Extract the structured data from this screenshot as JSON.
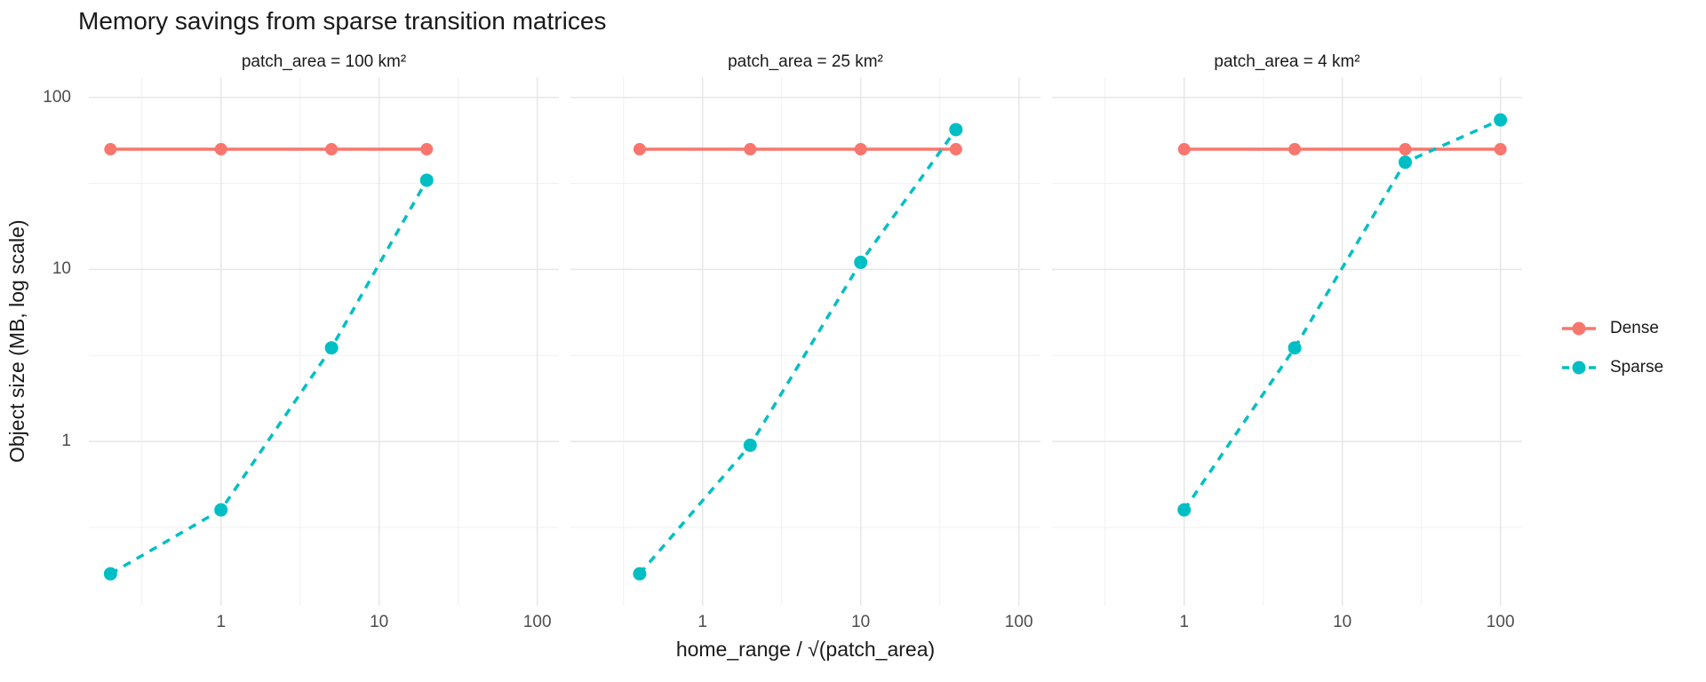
{
  "figure": {
    "title": "Memory savings from sparse transition matrices",
    "x_axis_title": "home_range / √(patch_area)",
    "y_axis_title": "Object size (MB, log scale)"
  },
  "legend": {
    "position": "right",
    "entries": [
      {
        "label": "Dense",
        "color": "#F8766D",
        "line_style": "solid"
      },
      {
        "label": "Sparse",
        "color": "#00BFC4",
        "line_style": "dashed"
      }
    ]
  },
  "chart_data": {
    "type": "line",
    "title": "Memory savings from sparse transition matrices",
    "xlabel": "home_range / √(patch_area)",
    "ylabel": "Object size (MB, log scale)",
    "x_scale": "log10",
    "y_scale": "log10",
    "x_domain": [
      0.146,
      137
    ],
    "y_domain": [
      0.111,
      131
    ],
    "x_tick_values": [
      1,
      10,
      100
    ],
    "y_tick_values": [
      100,
      10,
      1
    ],
    "x_tick_labels": [
      "1",
      "10",
      "100"
    ],
    "y_tick_labels": [
      "100",
      "10",
      "1"
    ],
    "x_minor_gridlines": [
      0.3162,
      3.1623,
      31.623
    ],
    "y_minor_gridlines": [
      0.3162,
      3.1623,
      31.623
    ],
    "grid": true,
    "legend_position": "right",
    "facets": [
      {
        "label": "patch_area = 100 km²",
        "series": [
          {
            "name": "Dense",
            "color": "#F8766D",
            "style": "solid",
            "x": [
              0.2,
              1,
              5,
              20
            ],
            "y": [
              50,
              50,
              50,
              50
            ]
          },
          {
            "name": "Sparse",
            "color": "#00BFC4",
            "style": "dashed",
            "x": [
              0.2,
              1,
              5,
              20
            ],
            "y": [
              0.17,
              0.4,
              3.5,
              33
            ]
          }
        ]
      },
      {
        "label": "patch_area = 25 km²",
        "series": [
          {
            "name": "Dense",
            "color": "#F8766D",
            "style": "solid",
            "x": [
              0.4,
              2,
              10,
              40
            ],
            "y": [
              50,
              50,
              50,
              50
            ]
          },
          {
            "name": "Sparse",
            "color": "#00BFC4",
            "style": "dashed",
            "x": [
              0.4,
              2,
              10,
              40
            ],
            "y": [
              0.17,
              0.95,
              11,
              65
            ]
          }
        ]
      },
      {
        "label": "patch_area = 4 km²",
        "series": [
          {
            "name": "Dense",
            "color": "#F8766D",
            "style": "solid",
            "x": [
              1,
              5,
              25,
              100
            ],
            "y": [
              50,
              50,
              50,
              50
            ]
          },
          {
            "name": "Sparse",
            "color": "#00BFC4",
            "style": "dashed",
            "x": [
              1,
              5,
              25,
              100
            ],
            "y": [
              0.4,
              3.5,
              42,
              74
            ]
          }
        ]
      }
    ]
  }
}
